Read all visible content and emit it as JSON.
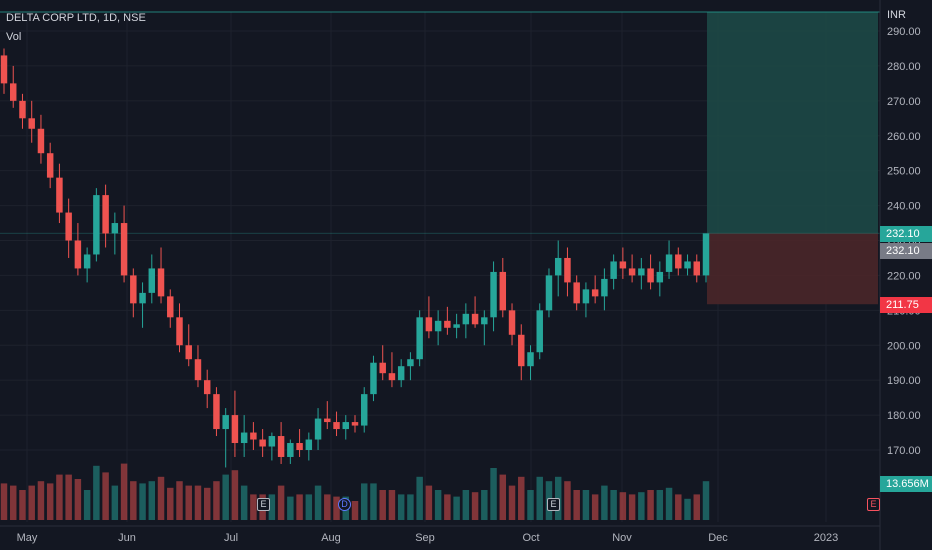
{
  "legend": {
    "symbol": "DELTA CORP LTD, 1D, NSE",
    "volume": "Vol"
  },
  "price_axis": {
    "currency": "INR"
  },
  "tags": {
    "last_price": "232.10",
    "last_price_dup": "232.10",
    "stop_price": "211.75",
    "volume": "13.656M"
  },
  "colors": {
    "background": "#131722",
    "up": "#26a69a",
    "down": "#ef5350",
    "profit_zone": "#1d4b48",
    "loss_zone": "#4a2629",
    "stop_tag": "#f23645",
    "price_tag": "#26a69a",
    "grey_tag": "#787b86"
  },
  "markers": [
    {
      "label": "E",
      "kind": "earnings"
    },
    {
      "label": "D",
      "kind": "dividend"
    },
    {
      "label": "E",
      "kind": "earnings"
    },
    {
      "label": "E",
      "kind": "earnings"
    }
  ],
  "chart_data": {
    "type": "candlestick",
    "title": "DELTA CORP LTD, 1D, NSE",
    "yticks": [
      "290.00",
      "280.00",
      "270.00",
      "260.00",
      "250.00",
      "240.00",
      "230.00",
      "220.00",
      "210.00",
      "200.00",
      "190.00",
      "180.00",
      "170.00"
    ],
    "ylim": [
      161,
      295
    ],
    "xticks": [
      "May",
      "Jun",
      "Jul",
      "Aug",
      "Sep",
      "Oct",
      "Nov",
      "Dec",
      "2023"
    ],
    "position": {
      "entry": 232.1,
      "target": 295,
      "stop": 211.75
    },
    "candles": [
      [
        283,
        285,
        272,
        275
      ],
      [
        275,
        280,
        268,
        270
      ],
      [
        270,
        272,
        262,
        265
      ],
      [
        265,
        270,
        258,
        262
      ],
      [
        262,
        266,
        252,
        255
      ],
      [
        255,
        258,
        245,
        248
      ],
      [
        248,
        252,
        235,
        238
      ],
      [
        238,
        242,
        225,
        230
      ],
      [
        230,
        235,
        220,
        222
      ],
      [
        222,
        228,
        218,
        226
      ],
      [
        226,
        245,
        224,
        243
      ],
      [
        243,
        246,
        228,
        232
      ],
      [
        232,
        238,
        226,
        235
      ],
      [
        235,
        240,
        218,
        220
      ],
      [
        220,
        222,
        208,
        212
      ],
      [
        212,
        218,
        205,
        215
      ],
      [
        215,
        226,
        212,
        222
      ],
      [
        222,
        228,
        212,
        214
      ],
      [
        214,
        216,
        205,
        208
      ],
      [
        208,
        212,
        198,
        200
      ],
      [
        200,
        206,
        194,
        196
      ],
      [
        196,
        200,
        188,
        190
      ],
      [
        190,
        193,
        182,
        186
      ],
      [
        186,
        188,
        174,
        176
      ],
      [
        176,
        182,
        165,
        180
      ],
      [
        180,
        187,
        168,
        172
      ],
      [
        172,
        180,
        168,
        175
      ],
      [
        175,
        178,
        170,
        173
      ],
      [
        173,
        176,
        168,
        171
      ],
      [
        171,
        175,
        167,
        174
      ],
      [
        174,
        178,
        166,
        168
      ],
      [
        168,
        173,
        166,
        172
      ],
      [
        172,
        176,
        168,
        170
      ],
      [
        170,
        175,
        167,
        173
      ],
      [
        173,
        182,
        170,
        179
      ],
      [
        179,
        184,
        176,
        178
      ],
      [
        178,
        181,
        174,
        176
      ],
      [
        176,
        180,
        173,
        178
      ],
      [
        178,
        180,
        175,
        177
      ],
      [
        177,
        188,
        175,
        186
      ],
      [
        186,
        197,
        184,
        195
      ],
      [
        195,
        200,
        190,
        192
      ],
      [
        192,
        198,
        188,
        190
      ],
      [
        190,
        196,
        188,
        194
      ],
      [
        194,
        198,
        190,
        196
      ],
      [
        196,
        210,
        194,
        208
      ],
      [
        208,
        214,
        202,
        204
      ],
      [
        204,
        210,
        200,
        207
      ],
      [
        207,
        211,
        203,
        205
      ],
      [
        205,
        209,
        202,
        206
      ],
      [
        206,
        212,
        202,
        209
      ],
      [
        209,
        214,
        205,
        206
      ],
      [
        206,
        210,
        200,
        208
      ],
      [
        208,
        224,
        204,
        221
      ],
      [
        221,
        225,
        208,
        210
      ],
      [
        210,
        212,
        200,
        203
      ],
      [
        203,
        206,
        190,
        194
      ],
      [
        194,
        200,
        190,
        198
      ],
      [
        198,
        212,
        196,
        210
      ],
      [
        210,
        222,
        208,
        220
      ],
      [
        220,
        230,
        214,
        225
      ],
      [
        225,
        228,
        214,
        218
      ],
      [
        218,
        220,
        210,
        212
      ],
      [
        212,
        218,
        208,
        216
      ],
      [
        216,
        220,
        212,
        214
      ],
      [
        214,
        222,
        210,
        219
      ],
      [
        219,
        226,
        216,
        224
      ],
      [
        224,
        228,
        219,
        222
      ],
      [
        222,
        226,
        218,
        220
      ],
      [
        220,
        225,
        216,
        222
      ],
      [
        222,
        226,
        216,
        218
      ],
      [
        218,
        224,
        214,
        221
      ],
      [
        221,
        230,
        219,
        226
      ],
      [
        226,
        228,
        220,
        222
      ],
      [
        222,
        226,
        220,
        224
      ],
      [
        224,
        226,
        218,
        220
      ],
      [
        220,
        232,
        218,
        232
      ]
    ],
    "volume_values": []
  }
}
